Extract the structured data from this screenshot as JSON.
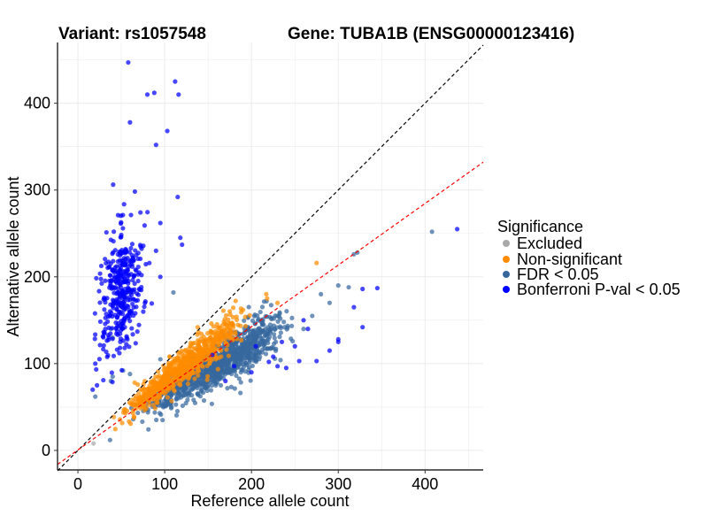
{
  "chart_data": {
    "type": "scatter",
    "title_left": "Variant: rs1057548",
    "title_right": "Gene: TUBA1B (ENSG00000123416)",
    "xlabel": "Reference allele count",
    "ylabel": "Alternative allele count",
    "xlim": [
      -23.5,
      467
    ],
    "ylim": [
      -22.5,
      470
    ],
    "xticks": [
      0,
      100,
      200,
      300,
      400
    ],
    "yticks": [
      0,
      100,
      200,
      300,
      400
    ],
    "grid": true,
    "reference_lines": [
      {
        "name": "identity",
        "slope": 1,
        "intercept": 0,
        "color": "#000000",
        "style": "dashed"
      },
      {
        "name": "fit",
        "slope": 0.71,
        "intercept": 0.5,
        "color": "#FF0000",
        "style": "dashed"
      }
    ],
    "legend": {
      "title": "Significance",
      "placement": "right",
      "entries": [
        {
          "label": "Excluded",
          "color": "#A9A9A9"
        },
        {
          "label": "Non-significant",
          "color": "#FF8C00"
        },
        {
          "label": "FDR < 0.05",
          "color": "#36689E"
        },
        {
          "label": "Bonferroni P-val < 0.05",
          "color": "#0000FF"
        }
      ]
    },
    "series": [
      {
        "name": "Excluded",
        "color": "#A9A9A9",
        "points": [
          [
            18,
            8
          ]
        ],
        "clusters": []
      },
      {
        "name": "Non-significant",
        "color": "#FF8C00",
        "points": [
          [
            275,
            216
          ],
          [
            217,
            180
          ],
          [
            218,
            175
          ],
          [
            230,
            170
          ],
          [
            138,
            142
          ]
        ],
        "clusters": [
          {
            "x_range": [
              25,
              215
            ],
            "slope": 0.79,
            "intercept": 0,
            "y_sd": 8,
            "n": 750
          }
        ]
      },
      {
        "name": "FDR < 0.05",
        "color": "#36689E",
        "points": [
          [
            408,
            252
          ],
          [
            322,
            228
          ],
          [
            318,
            226
          ],
          [
            300,
            190
          ],
          [
            312,
            188
          ],
          [
            280,
            180
          ],
          [
            290,
            170
          ],
          [
            270,
            155
          ],
          [
            260,
            140
          ],
          [
            38,
            140
          ],
          [
            40,
            130
          ],
          [
            52,
            92
          ],
          [
            60,
            88
          ],
          [
            40,
            85
          ],
          [
            38,
            80
          ],
          [
            20,
            62
          ],
          [
            37,
            12
          ],
          [
            110,
            182
          ],
          [
            95,
            105
          ]
        ],
        "clusters": [
          {
            "x_range": [
              45,
              270
            ],
            "slope": 0.6,
            "intercept": 2,
            "y_sd": 9,
            "n": 1100
          }
        ]
      },
      {
        "name": "Bonferroni P-val < 0.05",
        "color": "#0000FF",
        "points": [
          [
            58,
            447
          ],
          [
            80,
            410
          ],
          [
            88,
            412
          ],
          [
            112,
            425
          ],
          [
            116,
            410
          ],
          [
            103,
            368
          ],
          [
            90,
            352
          ],
          [
            60,
            378
          ],
          [
            115,
            292
          ],
          [
            95,
            262
          ],
          [
            118,
            245
          ],
          [
            90,
            230
          ],
          [
            120,
            237
          ],
          [
            95,
            200
          ],
          [
            20,
            100
          ],
          [
            22,
            75
          ],
          [
            17,
            70
          ],
          [
            437,
            255
          ],
          [
            345,
            187
          ],
          [
            328,
            186
          ],
          [
            318,
            165
          ],
          [
            328,
            142
          ],
          [
            300,
            128
          ],
          [
            300,
            125
          ],
          [
            265,
            140
          ],
          [
            290,
            115
          ],
          [
            275,
            103
          ],
          [
            255,
            103
          ],
          [
            220,
            102
          ],
          [
            200,
            90
          ],
          [
            240,
            95
          ],
          [
            230,
            97
          ],
          [
            235,
            125
          ],
          [
            250,
            120
          ],
          [
            225,
            108
          ],
          [
            205,
            120
          ],
          [
            180,
            97
          ],
          [
            170,
            80
          ],
          [
            155,
            110
          ],
          [
            260,
            150
          ]
        ],
        "clusters": [
          {
            "x_center": 50,
            "x_sd": 11,
            "y_center": 185,
            "y_sd": 38,
            "n": 380
          }
        ]
      }
    ]
  }
}
